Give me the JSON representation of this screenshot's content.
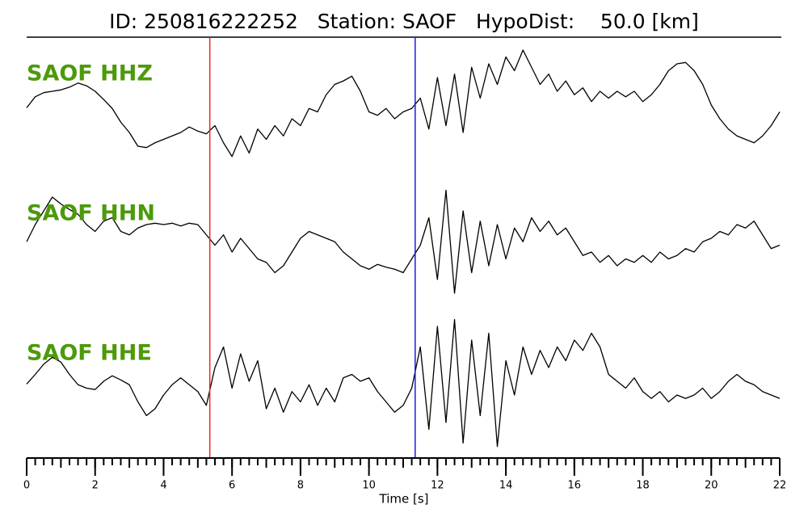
{
  "chart_data": {
    "type": "line",
    "title": "ID: 250816222252   Station: SAOF   HypoDist:    50.0 [km]",
    "xlabel": "Time [s]",
    "xlim": [
      0,
      22
    ],
    "xticks": [
      0,
      2,
      4,
      6,
      8,
      10,
      12,
      14,
      16,
      18,
      20,
      22
    ],
    "ylim": [
      -1,
      1
    ],
    "label_color": "#4c9a0a",
    "markers": [
      {
        "x": 5.35,
        "color": "#e8261e"
      },
      {
        "x": 11.35,
        "color": "#1a1adf"
      }
    ],
    "x": [
      0,
      0.25,
      0.5,
      0.75,
      1,
      1.25,
      1.5,
      1.75,
      2,
      2.25,
      2.5,
      2.75,
      3,
      3.25,
      3.5,
      3.75,
      4,
      4.25,
      4.5,
      4.75,
      5,
      5.25,
      5.5,
      5.75,
      6,
      6.25,
      6.5,
      6.75,
      7,
      7.25,
      7.5,
      7.75,
      8,
      8.25,
      8.5,
      8.75,
      9,
      9.25,
      9.5,
      9.75,
      10,
      10.25,
      10.5,
      10.75,
      11,
      11.25,
      11.5,
      11.75,
      12,
      12.25,
      12.5,
      12.75,
      13,
      13.25,
      13.5,
      13.75,
      14,
      14.25,
      14.5,
      14.75,
      15,
      15.25,
      15.5,
      15.75,
      16,
      16.25,
      16.5,
      16.75,
      17,
      17.25,
      17.5,
      17.75,
      18,
      18.25,
      18.5,
      18.75,
      19,
      19.25,
      19.5,
      19.75,
      20,
      20.25,
      20.5,
      20.75,
      21,
      21.25,
      21.5,
      21.75,
      22
    ],
    "series": [
      {
        "name": "SAOF HHZ",
        "color": "#000000",
        "values": [
          -0.04,
          0.12,
          0.18,
          0.2,
          0.22,
          0.26,
          0.32,
          0.28,
          0.2,
          0.08,
          -0.05,
          -0.25,
          -0.4,
          -0.6,
          -0.62,
          -0.55,
          -0.5,
          -0.45,
          -0.4,
          -0.32,
          -0.38,
          -0.42,
          -0.3,
          -0.55,
          -0.75,
          -0.45,
          -0.7,
          -0.35,
          -0.5,
          -0.3,
          -0.45,
          -0.2,
          -0.3,
          -0.05,
          -0.1,
          0.15,
          0.3,
          0.35,
          0.42,
          0.2,
          -0.1,
          -0.15,
          -0.05,
          -0.2,
          -0.1,
          -0.05,
          0.1,
          -0.35,
          0.4,
          -0.3,
          0.45,
          -0.4,
          0.55,
          0.1,
          0.6,
          0.3,
          0.7,
          0.5,
          0.8,
          0.55,
          0.3,
          0.45,
          0.2,
          0.35,
          0.15,
          0.25,
          0.05,
          0.2,
          0.1,
          0.2,
          0.12,
          0.2,
          0.05,
          0.15,
          0.3,
          0.5,
          0.6,
          0.62,
          0.5,
          0.3,
          0.0,
          -0.2,
          -0.35,
          -0.45,
          -0.5,
          -0.55,
          -0.45,
          -0.3,
          -0.1
        ]
      },
      {
        "name": "SAOF HHN",
        "color": "#000000",
        "values": [
          -0.05,
          0.2,
          0.4,
          0.6,
          0.5,
          0.42,
          0.35,
          0.2,
          0.1,
          0.25,
          0.3,
          0.1,
          0.05,
          0.15,
          0.2,
          0.22,
          0.2,
          0.22,
          0.18,
          0.22,
          0.2,
          0.05,
          -0.1,
          0.05,
          -0.2,
          0.0,
          -0.15,
          -0.3,
          -0.35,
          -0.5,
          -0.4,
          -0.2,
          0.0,
          0.1,
          0.05,
          0.0,
          -0.05,
          -0.2,
          -0.3,
          -0.4,
          -0.45,
          -0.38,
          -0.42,
          -0.45,
          -0.5,
          -0.3,
          -0.1,
          0.3,
          -0.6,
          0.7,
          -0.8,
          0.4,
          -0.5,
          0.25,
          -0.4,
          0.2,
          -0.3,
          0.15,
          -0.05,
          0.3,
          0.1,
          0.25,
          0.05,
          0.15,
          -0.05,
          -0.25,
          -0.2,
          -0.35,
          -0.25,
          -0.4,
          -0.3,
          -0.35,
          -0.25,
          -0.35,
          -0.2,
          -0.3,
          -0.25,
          -0.15,
          -0.2,
          -0.05,
          0.0,
          0.1,
          0.05,
          0.2,
          0.15,
          0.25,
          0.05,
          -0.15,
          -0.1
        ]
      },
      {
        "name": "SAOF HHE",
        "color": "#000000",
        "values": [
          -0.04,
          0.1,
          0.25,
          0.35,
          0.28,
          0.1,
          -0.05,
          -0.1,
          -0.12,
          0.0,
          0.08,
          0.02,
          -0.05,
          -0.3,
          -0.5,
          -0.4,
          -0.2,
          -0.05,
          0.05,
          -0.05,
          -0.15,
          -0.35,
          0.2,
          0.5,
          -0.1,
          0.4,
          0.0,
          0.3,
          -0.4,
          -0.1,
          -0.45,
          -0.15,
          -0.3,
          -0.05,
          -0.35,
          -0.1,
          -0.3,
          0.05,
          0.1,
          0.0,
          0.05,
          -0.15,
          -0.3,
          -0.45,
          -0.35,
          -0.1,
          0.5,
          -0.7,
          0.8,
          -0.6,
          0.9,
          -0.9,
          0.6,
          -0.5,
          0.7,
          -0.95,
          0.3,
          -0.2,
          0.5,
          0.1,
          0.45,
          0.2,
          0.5,
          0.3,
          0.6,
          0.45,
          0.7,
          0.5,
          0.1,
          0.0,
          -0.1,
          0.05,
          -0.15,
          -0.25,
          -0.15,
          -0.3,
          -0.2,
          -0.25,
          -0.2,
          -0.1,
          -0.25,
          -0.15,
          0.0,
          0.1,
          0.0,
          -0.05,
          -0.15,
          -0.2,
          -0.25
        ]
      }
    ]
  }
}
